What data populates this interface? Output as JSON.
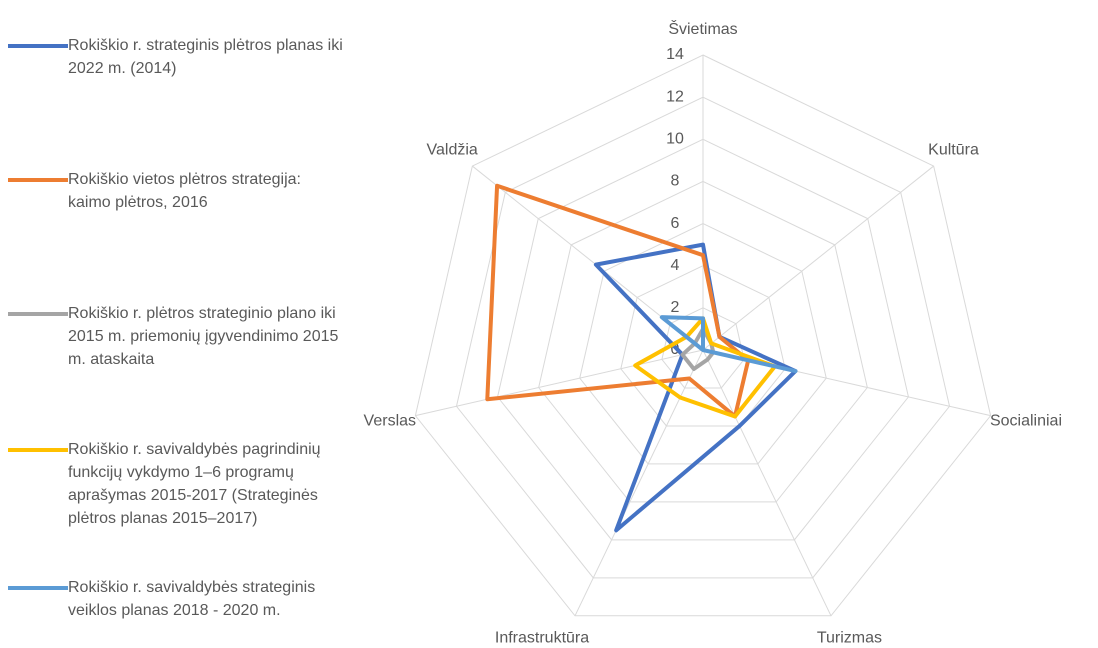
{
  "chart_data": {
    "type": "radar",
    "categories": [
      "Švietimas",
      "Kultūra",
      "Socialiniai",
      "Turizmas",
      "Infrastruktūra",
      "Verslas",
      "Valdžia"
    ],
    "series": [
      {
        "name": "Rokiškio r. strateginis plėtros planas iki 2022 m. (2014)",
        "color": "#4472c4",
        "values": [
          5,
          1,
          4.5,
          4,
          9.5,
          1,
          6.5
        ]
      },
      {
        "name": "Rokiškio vietos plėtros strategija: kaimo plėtros, 2016",
        "color": "#ed7d31",
        "values": [
          4.5,
          1,
          2.2,
          3.5,
          1.5,
          10.5,
          12.5
        ]
      },
      {
        "name": "Rokiškio r. plėtros strateginio plano iki 2015 m. priemonių įgyvendinimo 2015 m. ataskaita",
        "color": "#a5a5a5",
        "values": [
          1,
          0.5,
          0.5,
          0.5,
          1,
          1,
          0.5
        ]
      },
      {
        "name": "Rokiškio r. savivaldybės pagrindinių funkcijų vykdymo 1–6 programų aprašymas 2015-2017 (Strateginės plėtros planas 2015–2017)",
        "color": "#ffc000",
        "values": [
          1.5,
          0.5,
          3.5,
          3.5,
          2.5,
          3.3,
          1
        ]
      },
      {
        "name": "Rokiškio r. savivaldybės strateginis veiklos planas 2018 - 2020 m.",
        "color": "#5b9bd5",
        "values": [
          1.5,
          0,
          4.5,
          0,
          0,
          0,
          2.5
        ]
      }
    ],
    "ylim": [
      0,
      14
    ],
    "yticks": [
      0,
      2,
      4,
      6,
      8,
      10,
      12,
      14
    ],
    "grid": true,
    "legend": "left"
  }
}
